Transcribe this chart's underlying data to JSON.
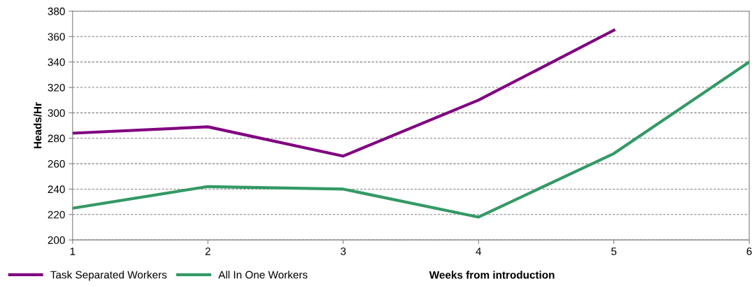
{
  "chart_data": {
    "type": "line",
    "xlabel": "Weeks from introduction",
    "ylabel": "Heads/Hr",
    "x": [
      1,
      2,
      3,
      4,
      5,
      6
    ],
    "series": [
      {
        "name": "Task Separated Workers",
        "color": "#800080",
        "values": [
          284,
          289,
          266,
          310,
          365,
          null
        ]
      },
      {
        "name": "All In One Workers",
        "color": "#339966",
        "values": [
          225,
          242,
          240,
          218,
          268,
          340
        ]
      }
    ],
    "xlim": [
      1,
      6
    ],
    "xticks": [
      1,
      2,
      3,
      4,
      5,
      6
    ],
    "ylim": [
      200,
      380
    ],
    "yticks": [
      200,
      220,
      240,
      260,
      280,
      300,
      320,
      340,
      360,
      380
    ],
    "grid": "y",
    "legend": "bottom left",
    "marker": "none",
    "line_style": "solid"
  }
}
